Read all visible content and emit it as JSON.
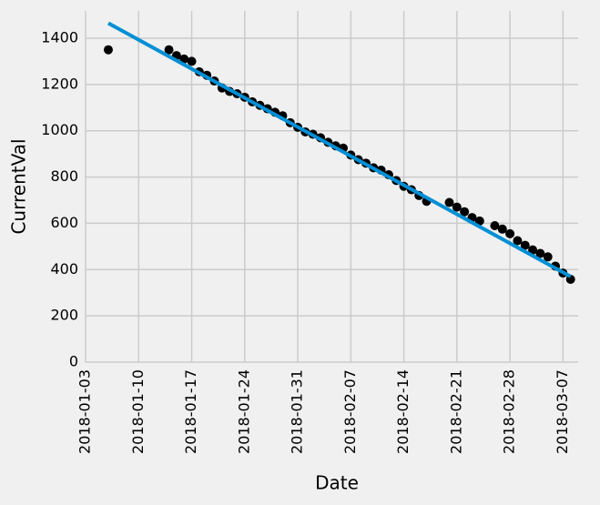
{
  "chart_data": {
    "type": "scatter",
    "x_label": "Date",
    "y_label": "CurrentVal",
    "xlim": [
      "2018-01-03",
      "2018-03-09"
    ],
    "ylim": [
      0,
      1518
    ],
    "xticks": [
      "2018-01-03",
      "2018-01-10",
      "2018-01-17",
      "2018-01-24",
      "2018-01-31",
      "2018-02-07",
      "2018-02-14",
      "2018-02-21",
      "2018-02-28",
      "2018-03-07"
    ],
    "yticks": [
      0,
      200,
      400,
      600,
      800,
      1000,
      1200,
      1400
    ],
    "grid": true,
    "series": [
      {
        "type": "scatter",
        "color": "#000000",
        "x": [
          "2018-01-06",
          "2018-01-14",
          "2018-01-15",
          "2018-01-16",
          "2018-01-17",
          "2018-01-18",
          "2018-01-19",
          "2018-01-20",
          "2018-01-21",
          "2018-01-22",
          "2018-01-23",
          "2018-01-24",
          "2018-01-25",
          "2018-01-26",
          "2018-01-27",
          "2018-01-28",
          "2018-01-29",
          "2018-01-30",
          "2018-01-31",
          "2018-02-01",
          "2018-02-02",
          "2018-02-03",
          "2018-02-04",
          "2018-02-05",
          "2018-02-06",
          "2018-02-07",
          "2018-02-08",
          "2018-02-09",
          "2018-02-10",
          "2018-02-11",
          "2018-02-12",
          "2018-02-13",
          "2018-02-14",
          "2018-02-15",
          "2018-02-16",
          "2018-02-17",
          "2018-02-20",
          "2018-02-21",
          "2018-02-22",
          "2018-02-23",
          "2018-02-24",
          "2018-02-26",
          "2018-02-27",
          "2018-02-28",
          "2018-03-01",
          "2018-03-02",
          "2018-03-03",
          "2018-03-04",
          "2018-03-05",
          "2018-03-06",
          "2018-03-07",
          "2018-03-08"
        ],
        "values": [
          1350,
          1350,
          1325,
          1310,
          1300,
          1255,
          1240,
          1215,
          1185,
          1170,
          1160,
          1145,
          1125,
          1110,
          1095,
          1080,
          1065,
          1035,
          1015,
          995,
          985,
          970,
          950,
          935,
          925,
          895,
          875,
          860,
          840,
          830,
          810,
          785,
          760,
          745,
          720,
          695,
          690,
          670,
          650,
          625,
          610,
          590,
          575,
          555,
          525,
          505,
          485,
          470,
          455,
          415,
          385,
          358
        ]
      },
      {
        "type": "line",
        "color": "#008fd5",
        "x": [
          "2018-01-06",
          "2018-03-08"
        ],
        "values": [
          1465,
          370
        ]
      }
    ]
  }
}
